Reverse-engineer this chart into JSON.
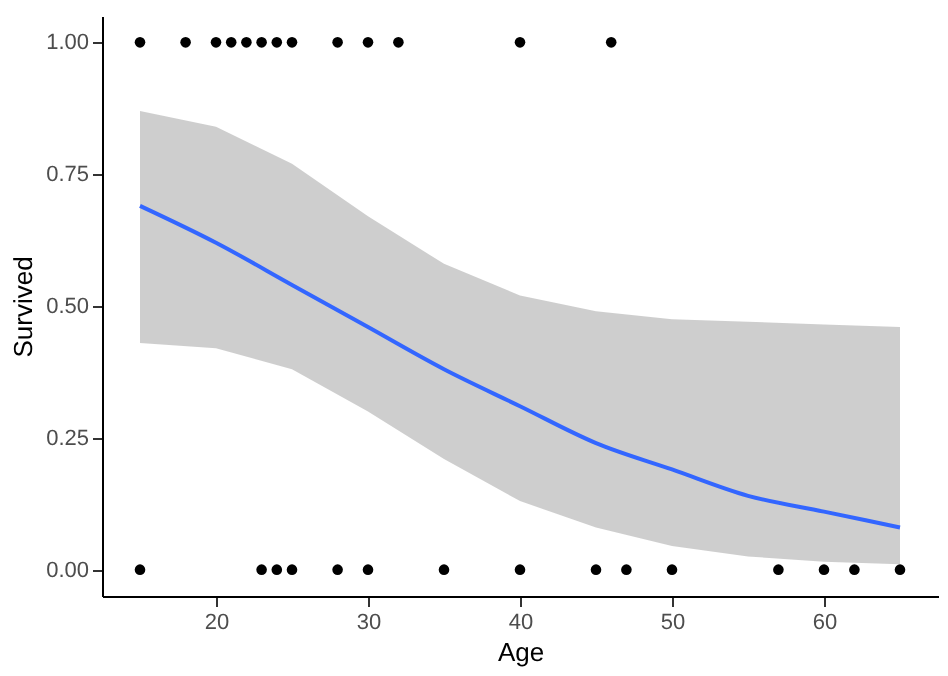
{
  "chart_data": {
    "type": "scatter",
    "xlabel": "Age",
    "ylabel": "Survived",
    "xlim": [
      12.5,
      67.5
    ],
    "xticks": [
      20,
      30,
      40,
      50,
      60
    ],
    "ylim": [
      -0.05,
      1.05
    ],
    "yticks": [
      {
        "value": 0,
        "label": "0.00"
      },
      {
        "value": 0.25,
        "label": "0.25"
      },
      {
        "value": 0.5,
        "label": "0.50"
      },
      {
        "value": 0.75,
        "label": "0.75"
      },
      {
        "value": 1,
        "label": "1.00"
      }
    ],
    "grid": false,
    "series": [
      {
        "type": "line",
        "color": "#3366ff",
        "x": [
          15,
          20,
          25,
          30,
          35,
          40,
          45,
          50,
          55,
          60,
          65
        ],
        "values": [
          0.69,
          0.62,
          0.54,
          0.46,
          0.38,
          0.31,
          0.24,
          0.19,
          0.14,
          0.11,
          0.08
        ],
        "lower": [
          0.43,
          0.42,
          0.38,
          0.3,
          0.21,
          0.13,
          0.08,
          0.045,
          0.025,
          0.015,
          0.01
        ],
        "upper": [
          0.87,
          0.84,
          0.77,
          0.67,
          0.58,
          0.52,
          0.49,
          0.475,
          0.47,
          0.465,
          0.46
        ]
      },
      {
        "color": "#000000",
        "marker": "circle",
        "x": [
          15,
          18,
          20,
          21,
          22,
          23,
          24,
          25,
          28,
          30,
          32,
          40,
          46,
          15,
          23,
          24,
          25,
          28,
          30,
          35,
          40,
          45,
          47,
          50,
          57,
          60,
          62,
          65
        ],
        "values": [
          1,
          1,
          1,
          1,
          1,
          1,
          1,
          1,
          1,
          1,
          1,
          1,
          1,
          0,
          0,
          0,
          0,
          0,
          0,
          0,
          0,
          0,
          0,
          0,
          0,
          0,
          0,
          0
        ]
      }
    ]
  }
}
